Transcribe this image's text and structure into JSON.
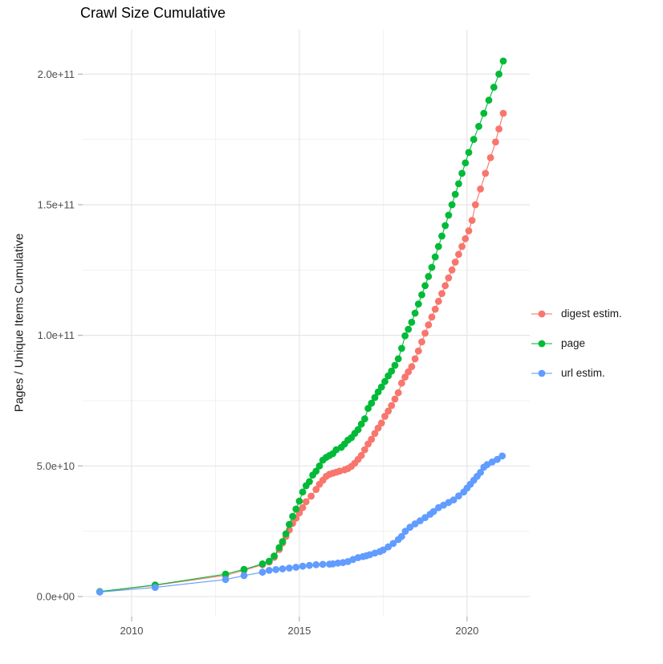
{
  "chart_data": {
    "type": "line",
    "title": "Crawl Size Cumulative",
    "xlabel": "",
    "ylabel": "Pages / Unique Items Cumulative",
    "value_unit": "pages, point values stored in billions (1e9)",
    "grid": true,
    "legend_position": "right",
    "x_axis": {
      "range": [
        2008.54,
        2021.87
      ],
      "major_ticks": [
        {
          "label": "2010",
          "value": 2010
        },
        {
          "label": "2015",
          "value": 2015
        },
        {
          "label": "2020",
          "value": 2020
        }
      ],
      "minor_gridlines": [
        2012.5,
        2017.5
      ]
    },
    "y_axis": {
      "range_billions": [
        -7.7,
        217
      ],
      "major_ticks": [
        {
          "label": "0.0e+00",
          "value": 0
        },
        {
          "label": "5.0e+10",
          "value": 50
        },
        {
          "label": "1.0e+11",
          "value": 100
        },
        {
          "label": "1.5e+11",
          "value": 150
        },
        {
          "label": "2.0e+11",
          "value": 200
        }
      ],
      "minor_gridlines": [
        25,
        75,
        125,
        175
      ]
    },
    "series": [
      {
        "name": "digest estim.",
        "color": "#F8766D",
        "points": [
          [
            2009.05,
            1.8
          ],
          [
            2010.7,
            4.3
          ],
          [
            2012.8,
            8.1
          ],
          [
            2013.35,
            10.0
          ],
          [
            2013.9,
            12.2
          ],
          [
            2014.1,
            13.2
          ],
          [
            2014.25,
            15.0
          ],
          [
            2014.4,
            18.0
          ],
          [
            2014.5,
            20.5
          ],
          [
            2014.6,
            23.0
          ],
          [
            2014.7,
            25.5
          ],
          [
            2014.8,
            28.0
          ],
          [
            2014.9,
            30.0
          ],
          [
            2015.0,
            32.0
          ],
          [
            2015.1,
            34.0
          ],
          [
            2015.2,
            36.3
          ],
          [
            2015.35,
            38.4
          ],
          [
            2015.5,
            41.0
          ],
          [
            2015.6,
            43.0
          ],
          [
            2015.7,
            44.5
          ],
          [
            2015.8,
            46.0
          ],
          [
            2015.9,
            46.8
          ],
          [
            2016.0,
            47.2
          ],
          [
            2016.1,
            47.6
          ],
          [
            2016.2,
            48.0
          ],
          [
            2016.35,
            48.5
          ],
          [
            2016.45,
            49.0
          ],
          [
            2016.55,
            49.8
          ],
          [
            2016.65,
            51.0
          ],
          [
            2016.75,
            52.5
          ],
          [
            2016.85,
            54.0
          ],
          [
            2016.95,
            56.2
          ],
          [
            2017.05,
            58.4
          ],
          [
            2017.15,
            60.2
          ],
          [
            2017.25,
            62.4
          ],
          [
            2017.35,
            64.5
          ],
          [
            2017.45,
            66.4
          ],
          [
            2017.55,
            69.0
          ],
          [
            2017.65,
            71.0
          ],
          [
            2017.75,
            73.1
          ],
          [
            2017.85,
            75.6
          ],
          [
            2017.95,
            78.0
          ],
          [
            2018.05,
            81.7
          ],
          [
            2018.15,
            84.0
          ],
          [
            2018.25,
            86.0
          ],
          [
            2018.35,
            88.0
          ],
          [
            2018.45,
            91.0
          ],
          [
            2018.55,
            94.0
          ],
          [
            2018.65,
            97.5
          ],
          [
            2018.75,
            100.8
          ],
          [
            2018.85,
            104.0
          ],
          [
            2018.95,
            107.0
          ],
          [
            2019.05,
            110.0
          ],
          [
            2019.15,
            113.0
          ],
          [
            2019.25,
            116.0
          ],
          [
            2019.35,
            119.0
          ],
          [
            2019.45,
            122.0
          ],
          [
            2019.55,
            125.0
          ],
          [
            2019.65,
            128.0
          ],
          [
            2019.75,
            131.0
          ],
          [
            2019.85,
            134.0
          ],
          [
            2019.95,
            137.0
          ],
          [
            2020.05,
            140.0
          ],
          [
            2020.15,
            144.0
          ],
          [
            2020.25,
            150.0
          ],
          [
            2020.4,
            156.0
          ],
          [
            2020.55,
            162.0
          ],
          [
            2020.7,
            168.0
          ],
          [
            2020.85,
            174.0
          ],
          [
            2020.95,
            179.0
          ],
          [
            2021.08,
            185.0
          ]
        ]
      },
      {
        "name": "page",
        "color": "#00BA38",
        "points": [
          [
            2009.05,
            1.9
          ],
          [
            2010.7,
            4.4
          ],
          [
            2012.8,
            8.6
          ],
          [
            2013.35,
            10.4
          ],
          [
            2013.9,
            12.5
          ],
          [
            2014.1,
            13.5
          ],
          [
            2014.25,
            15.5
          ],
          [
            2014.4,
            18.7
          ],
          [
            2014.5,
            21.0
          ],
          [
            2014.6,
            24.0
          ],
          [
            2014.7,
            27.6
          ],
          [
            2014.8,
            30.7
          ],
          [
            2014.9,
            33.5
          ],
          [
            2015.0,
            36.5
          ],
          [
            2015.1,
            40.0
          ],
          [
            2015.2,
            42.4
          ],
          [
            2015.3,
            44.0
          ],
          [
            2015.4,
            46.5
          ],
          [
            2015.5,
            48.0
          ],
          [
            2015.6,
            50.0
          ],
          [
            2015.7,
            52.2
          ],
          [
            2015.8,
            53.3
          ],
          [
            2015.9,
            54.0
          ],
          [
            2016.0,
            54.7
          ],
          [
            2016.1,
            56.2
          ],
          [
            2016.25,
            57.1
          ],
          [
            2016.35,
            58.4
          ],
          [
            2016.45,
            59.9
          ],
          [
            2016.55,
            60.8
          ],
          [
            2016.65,
            62.4
          ],
          [
            2016.75,
            63.9
          ],
          [
            2016.85,
            66.0
          ],
          [
            2016.95,
            68.0
          ],
          [
            2017.05,
            72.0
          ],
          [
            2017.15,
            74.0
          ],
          [
            2017.25,
            76.2
          ],
          [
            2017.35,
            78.3
          ],
          [
            2017.45,
            80.2
          ],
          [
            2017.55,
            82.3
          ],
          [
            2017.65,
            84.5
          ],
          [
            2017.75,
            86.3
          ],
          [
            2017.85,
            88.5
          ],
          [
            2017.95,
            91.0
          ],
          [
            2018.05,
            95.0
          ],
          [
            2018.15,
            99.8
          ],
          [
            2018.25,
            102.3
          ],
          [
            2018.35,
            105.0
          ],
          [
            2018.45,
            108.5
          ],
          [
            2018.55,
            112.0
          ],
          [
            2018.65,
            115.5
          ],
          [
            2018.75,
            119.0
          ],
          [
            2018.85,
            122.5
          ],
          [
            2018.95,
            126.0
          ],
          [
            2019.05,
            130.0
          ],
          [
            2019.15,
            134.0
          ],
          [
            2019.25,
            138.0
          ],
          [
            2019.35,
            142.0
          ],
          [
            2019.45,
            146.0
          ],
          [
            2019.55,
            150.0
          ],
          [
            2019.65,
            154.0
          ],
          [
            2019.75,
            158.0
          ],
          [
            2019.85,
            162.0
          ],
          [
            2019.95,
            166.0
          ],
          [
            2020.05,
            170.0
          ],
          [
            2020.2,
            175.0
          ],
          [
            2020.35,
            180.0
          ],
          [
            2020.5,
            185.0
          ],
          [
            2020.65,
            190.0
          ],
          [
            2020.8,
            195.0
          ],
          [
            2020.95,
            200.0
          ],
          [
            2021.08,
            205.0
          ]
        ]
      },
      {
        "name": "url estim.",
        "color": "#619CFF",
        "points": [
          [
            2009.05,
            1.7
          ],
          [
            2010.7,
            3.5
          ],
          [
            2012.8,
            6.5
          ],
          [
            2013.35,
            8.0
          ],
          [
            2013.9,
            9.3
          ],
          [
            2014.1,
            10.0
          ],
          [
            2014.3,
            10.3
          ],
          [
            2014.5,
            10.6
          ],
          [
            2014.7,
            10.9
          ],
          [
            2014.9,
            11.2
          ],
          [
            2015.1,
            11.6
          ],
          [
            2015.3,
            11.9
          ],
          [
            2015.5,
            12.2
          ],
          [
            2015.7,
            12.3
          ],
          [
            2015.9,
            12.4
          ],
          [
            2016.0,
            12.5
          ],
          [
            2016.15,
            12.8
          ],
          [
            2016.3,
            13.0
          ],
          [
            2016.45,
            13.4
          ],
          [
            2016.6,
            14.2
          ],
          [
            2016.75,
            14.9
          ],
          [
            2016.9,
            15.3
          ],
          [
            2017.0,
            15.6
          ],
          [
            2017.1,
            16.0
          ],
          [
            2017.25,
            16.6
          ],
          [
            2017.4,
            17.2
          ],
          [
            2017.5,
            17.8
          ],
          [
            2017.65,
            19.0
          ],
          [
            2017.8,
            20.3
          ],
          [
            2017.95,
            21.8
          ],
          [
            2018.05,
            23.0
          ],
          [
            2018.16,
            25.0
          ],
          [
            2018.3,
            26.5
          ],
          [
            2018.45,
            27.8
          ],
          [
            2018.6,
            29.0
          ],
          [
            2018.75,
            30.2
          ],
          [
            2018.9,
            31.5
          ],
          [
            2019.0,
            32.5
          ],
          [
            2019.15,
            34.0
          ],
          [
            2019.3,
            35.0
          ],
          [
            2019.45,
            36.0
          ],
          [
            2019.6,
            37.0
          ],
          [
            2019.75,
            38.5
          ],
          [
            2019.9,
            40.0
          ],
          [
            2020.0,
            41.5
          ],
          [
            2020.1,
            43.0
          ],
          [
            2020.2,
            44.5
          ],
          [
            2020.3,
            46.0
          ],
          [
            2020.4,
            47.5
          ],
          [
            2020.5,
            49.5
          ],
          [
            2020.6,
            50.5
          ],
          [
            2020.75,
            51.5
          ],
          [
            2020.9,
            52.5
          ],
          [
            2021.05,
            53.8
          ]
        ]
      }
    ]
  }
}
